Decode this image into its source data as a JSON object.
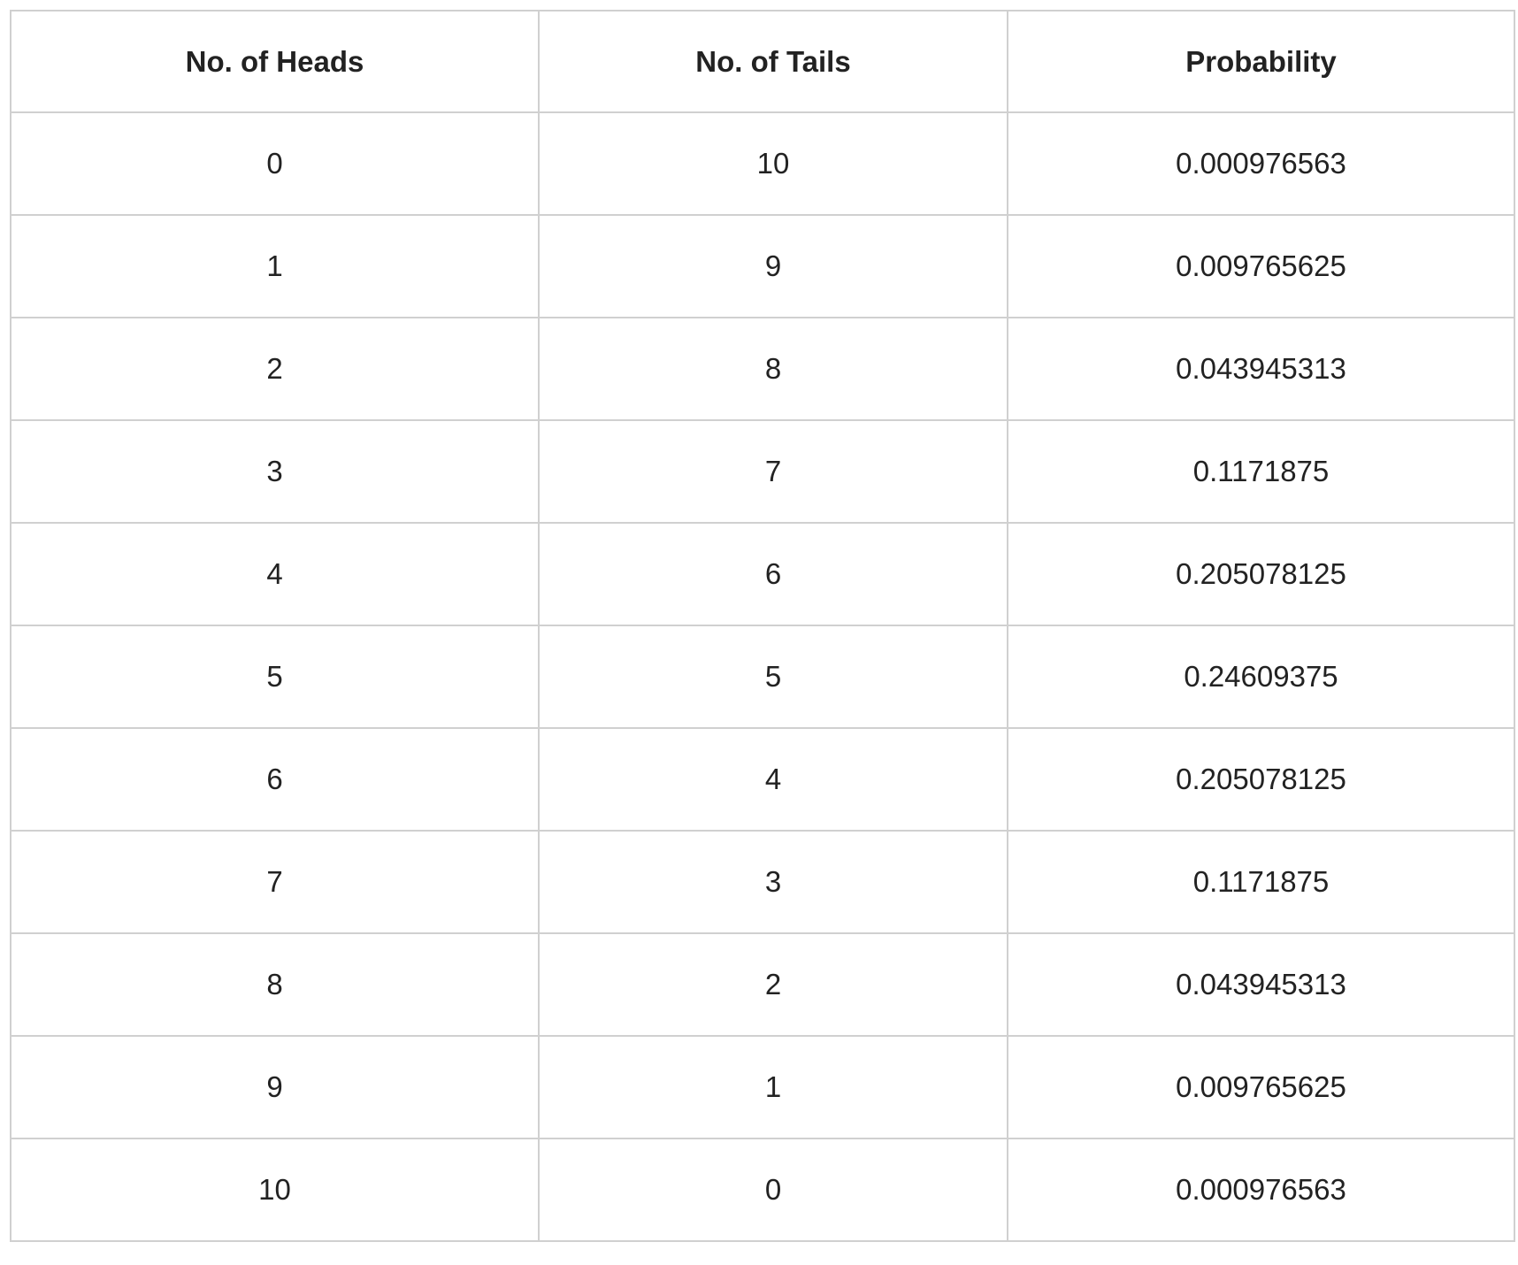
{
  "table": {
    "headers": [
      "No. of Heads",
      "No. of Tails",
      "Probability"
    ],
    "rows": [
      [
        "0",
        "10",
        "0.000976563"
      ],
      [
        "1",
        "9",
        "0.009765625"
      ],
      [
        "2",
        "8",
        "0.043945313"
      ],
      [
        "3",
        "7",
        "0.1171875"
      ],
      [
        "4",
        "6",
        "0.205078125"
      ],
      [
        "5",
        "5",
        "0.24609375"
      ],
      [
        "6",
        "4",
        "0.205078125"
      ],
      [
        "7",
        "3",
        "0.1171875"
      ],
      [
        "8",
        "2",
        "0.043945313"
      ],
      [
        "9",
        "1",
        "0.009765625"
      ],
      [
        "10",
        "0",
        "0.000976563"
      ]
    ]
  },
  "colors": {
    "border": "#d0d0d0",
    "text": "#222222",
    "background": "#ffffff"
  }
}
